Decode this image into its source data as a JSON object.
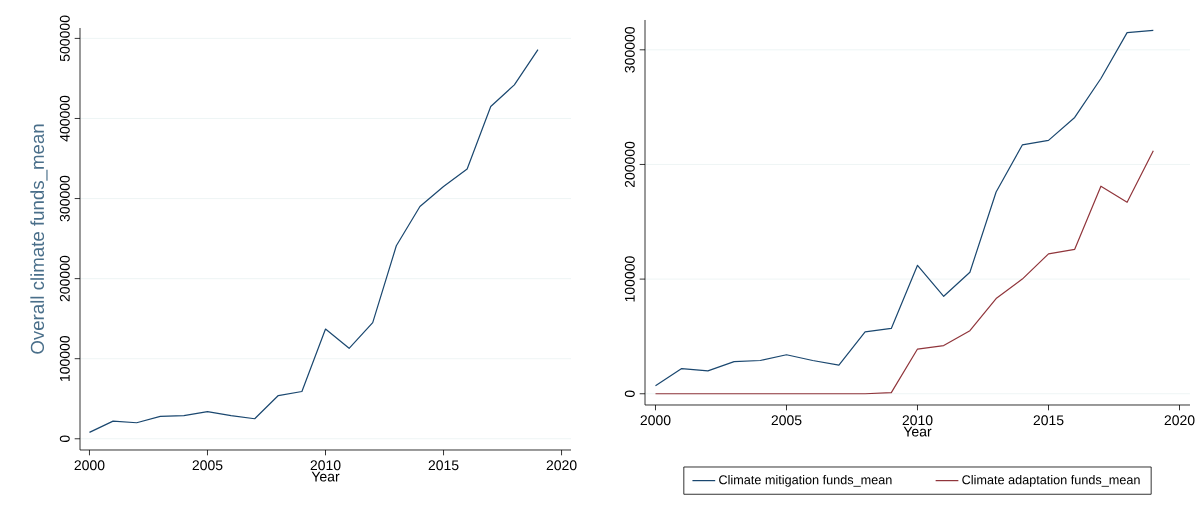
{
  "chart_data": [
    {
      "type": "line",
      "xlabel": "Year",
      "ylabel": "Overall climate funds_mean",
      "x": [
        2000,
        2001,
        2002,
        2003,
        2004,
        2005,
        2006,
        2007,
        2008,
        2009,
        2010,
        2011,
        2012,
        2013,
        2014,
        2015,
        2016,
        2017,
        2018,
        2019
      ],
      "series": [
        {
          "color": "#1a476f",
          "values": [
            8000,
            22000,
            20000,
            28000,
            29000,
            34000,
            29000,
            25000,
            54000,
            59000,
            137000,
            113000,
            145000,
            241000,
            290000,
            315000,
            337000,
            415000,
            442000,
            486000
          ]
        }
      ],
      "xlim": [
        1999.6,
        2020.4
      ],
      "ylim": [
        -14000,
        513000
      ],
      "xticks": [
        2000,
        2005,
        2010,
        2015,
        2020
      ],
      "yticks": [
        0,
        100000,
        200000,
        300000,
        400000,
        500000
      ],
      "grid": "y",
      "legend": false,
      "marker": "none",
      "line_style": "solid"
    },
    {
      "type": "line",
      "xlabel": "Year",
      "x": [
        2000,
        2001,
        2002,
        2003,
        2004,
        2005,
        2006,
        2007,
        2008,
        2009,
        2010,
        2011,
        2012,
        2013,
        2014,
        2015,
        2016,
        2017,
        2018,
        2019
      ],
      "series": [
        {
          "name": "Climate mitigation funds_mean",
          "color": "#1a476f",
          "values": [
            7000,
            22000,
            20000,
            28000,
            29000,
            34000,
            29000,
            25000,
            54000,
            57000,
            112000,
            85000,
            106000,
            176000,
            217000,
            221000,
            241000,
            275000,
            315000,
            317000
          ]
        },
        {
          "name": "Climate adaptation funds_mean",
          "color": "#90353b",
          "values": [
            0,
            0,
            0,
            0,
            0,
            0,
            0,
            0,
            0,
            1000,
            39000,
            42000,
            55000,
            83000,
            100000,
            122000,
            126000,
            181000,
            167000,
            212000
          ]
        }
      ],
      "xlim": [
        1999.6,
        2020.4
      ],
      "ylim": [
        -9800,
        326000
      ],
      "xticks": [
        2000,
        2005,
        2010,
        2015,
        2020
      ],
      "yticks": [
        0,
        100000,
        200000,
        300000
      ],
      "grid": "y",
      "legend": "bottom",
      "marker": "none",
      "line_style": "solid"
    }
  ]
}
